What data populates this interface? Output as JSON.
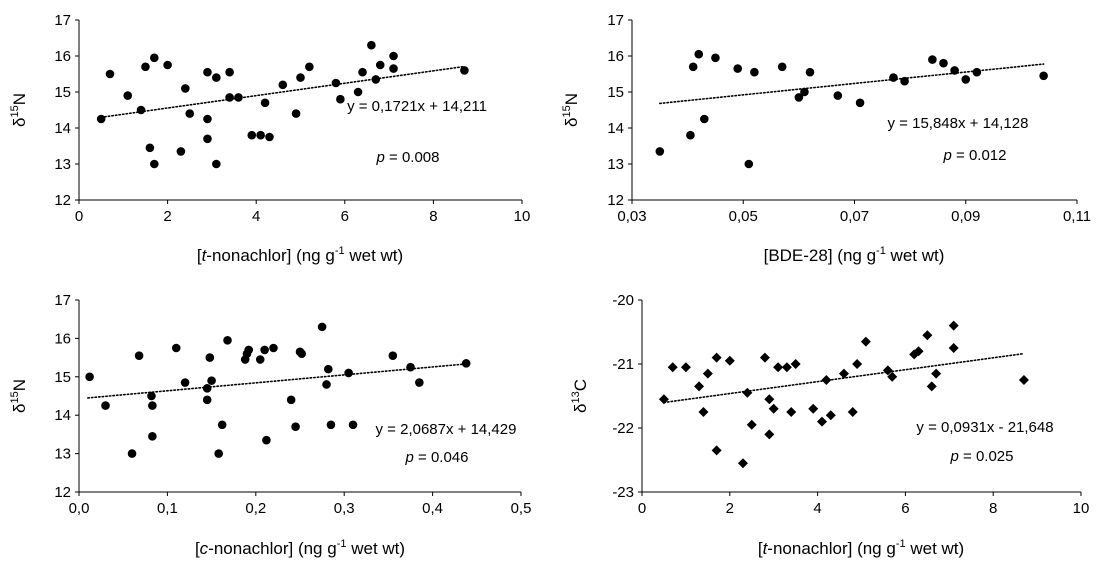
{
  "chart_data": [
    {
      "type": "scatter",
      "marker": "circle",
      "xlabel": {
        "pre": "[",
        "it": "t",
        "mid": "-nonachlor] (ng g",
        "sup": "-1",
        "post": " wet wt)"
      },
      "ylabel": {
        "main": "δ",
        "sup": "15",
        "post": "N"
      },
      "xlim": [
        0,
        10
      ],
      "ylim": [
        12,
        17
      ],
      "xticks": [
        "0",
        "2",
        "4",
        "6",
        "8",
        "10"
      ],
      "yticks": [
        "12",
        "13",
        "14",
        "15",
        "16",
        "17"
      ],
      "equation": "y = 0,1721x + 14,211",
      "p_label": "p",
      "p_value": " = 0.008",
      "trendline": {
        "slope": 0.1721,
        "intercept": 14.211,
        "x_range": [
          0.5,
          8.7
        ]
      },
      "points": [
        [
          0.5,
          14.25
        ],
        [
          0.7,
          15.5
        ],
        [
          1.1,
          14.9
        ],
        [
          1.4,
          14.5
        ],
        [
          1.5,
          15.7
        ],
        [
          1.6,
          13.45
        ],
        [
          1.7,
          13.0
        ],
        [
          1.7,
          15.95
        ],
        [
          2.0,
          15.75
        ],
        [
          2.3,
          13.35
        ],
        [
          2.4,
          15.1
        ],
        [
          2.5,
          14.4
        ],
        [
          2.9,
          15.55
        ],
        [
          2.9,
          14.25
        ],
        [
          2.9,
          13.7
        ],
        [
          3.1,
          13.0
        ],
        [
          3.1,
          15.4
        ],
        [
          3.4,
          15.55
        ],
        [
          3.4,
          14.85
        ],
        [
          3.6,
          14.85
        ],
        [
          3.9,
          13.8
        ],
        [
          4.1,
          13.8
        ],
        [
          4.2,
          14.7
        ],
        [
          4.3,
          13.75
        ],
        [
          4.6,
          15.2
        ],
        [
          4.9,
          14.4
        ],
        [
          5.0,
          15.4
        ],
        [
          5.2,
          15.7
        ],
        [
          5.8,
          15.25
        ],
        [
          5.9,
          14.8
        ],
        [
          6.3,
          15.0
        ],
        [
          6.4,
          15.55
        ],
        [
          6.6,
          16.3
        ],
        [
          6.7,
          15.35
        ],
        [
          6.8,
          15.75
        ],
        [
          7.1,
          16.0
        ],
        [
          7.1,
          15.65
        ],
        [
          8.7,
          15.6
        ]
      ]
    },
    {
      "type": "scatter",
      "marker": "circle",
      "xlabel": {
        "pre": "[BDE-28] (ng g",
        "sup": "-1",
        "post": " wet wt)"
      },
      "ylabel": {
        "main": "δ",
        "sup": "15",
        "post": "N"
      },
      "xlim": [
        0.03,
        0.11
      ],
      "ylim": [
        12,
        17
      ],
      "xticks": [
        "0,03",
        "0,05",
        "0,07",
        "0,09",
        "0,11"
      ],
      "yticks": [
        "12",
        "13",
        "14",
        "15",
        "16",
        "17"
      ],
      "equation": "y = 15,848x + 14,128",
      "p_label": "p",
      "p_value": " = 0.012",
      "trendline": {
        "slope": 15.848,
        "intercept": 14.128,
        "x_range": [
          0.035,
          0.104
        ]
      },
      "points": [
        [
          0.035,
          13.35
        ],
        [
          0.0405,
          13.8
        ],
        [
          0.041,
          15.7
        ],
        [
          0.042,
          16.05
        ],
        [
          0.043,
          14.25
        ],
        [
          0.045,
          15.95
        ],
        [
          0.049,
          15.65
        ],
        [
          0.051,
          13.0
        ],
        [
          0.052,
          15.55
        ],
        [
          0.057,
          15.7
        ],
        [
          0.06,
          14.85
        ],
        [
          0.061,
          15.0
        ],
        [
          0.062,
          15.55
        ],
        [
          0.067,
          14.9
        ],
        [
          0.071,
          14.7
        ],
        [
          0.077,
          15.4
        ],
        [
          0.079,
          15.3
        ],
        [
          0.084,
          15.9
        ],
        [
          0.086,
          15.8
        ],
        [
          0.088,
          15.6
        ],
        [
          0.09,
          15.35
        ],
        [
          0.092,
          15.55
        ],
        [
          0.104,
          15.45
        ]
      ]
    },
    {
      "type": "scatter",
      "marker": "circle",
      "xlabel": {
        "pre": "[",
        "it": "c",
        "mid": "-nonachlor] (ng g",
        "sup": "-1",
        "post": " wet wt)"
      },
      "ylabel": {
        "main": "δ",
        "sup": "15",
        "post": "N"
      },
      "xlim": [
        0.0,
        0.5
      ],
      "ylim": [
        12,
        17
      ],
      "xticks": [
        "0,0",
        "0,1",
        "0,2",
        "0,3",
        "0,4",
        "0,5"
      ],
      "yticks": [
        "12",
        "13",
        "14",
        "15",
        "16",
        "17"
      ],
      "equation": "y = 2,0687x + 14,429",
      "p_label": "p",
      "p_value": " = 0.046",
      "trendline": {
        "slope": 2.0687,
        "intercept": 14.429,
        "x_range": [
          0.01,
          0.44
        ]
      },
      "points": [
        [
          0.012,
          15.0
        ],
        [
          0.03,
          14.25
        ],
        [
          0.06,
          13.0
        ],
        [
          0.068,
          15.55
        ],
        [
          0.082,
          14.5
        ],
        [
          0.083,
          14.25
        ],
        [
          0.083,
          13.45
        ],
        [
          0.11,
          15.75
        ],
        [
          0.12,
          14.85
        ],
        [
          0.145,
          14.7
        ],
        [
          0.145,
          14.4
        ],
        [
          0.148,
          15.5
        ],
        [
          0.15,
          14.9
        ],
        [
          0.158,
          13.0
        ],
        [
          0.162,
          13.75
        ],
        [
          0.168,
          15.95
        ],
        [
          0.188,
          15.45
        ],
        [
          0.19,
          15.6
        ],
        [
          0.192,
          15.7
        ],
        [
          0.205,
          15.45
        ],
        [
          0.21,
          15.7
        ],
        [
          0.212,
          13.35
        ],
        [
          0.22,
          15.75
        ],
        [
          0.24,
          14.4
        ],
        [
          0.245,
          13.7
        ],
        [
          0.25,
          15.65
        ],
        [
          0.252,
          15.6
        ],
        [
          0.275,
          16.3
        ],
        [
          0.28,
          14.8
        ],
        [
          0.282,
          15.2
        ],
        [
          0.285,
          13.75
        ],
        [
          0.305,
          15.1
        ],
        [
          0.31,
          13.75
        ],
        [
          0.355,
          15.55
        ],
        [
          0.375,
          15.25
        ],
        [
          0.385,
          14.85
        ],
        [
          0.438,
          15.35
        ]
      ]
    },
    {
      "type": "scatter",
      "marker": "diamond",
      "xlabel": {
        "pre": "[",
        "it": "t",
        "mid": "-nonachlor] (ng g",
        "sup": "-1",
        "post": " wet wt)"
      },
      "ylabel": {
        "main": "δ",
        "sup": "13",
        "post": "C"
      },
      "xlim": [
        0,
        10
      ],
      "ylim": [
        -23,
        -20
      ],
      "xticks": [
        "0",
        "2",
        "4",
        "6",
        "8",
        "10"
      ],
      "yticks": [
        "-23",
        "-22",
        "-21",
        "-20"
      ],
      "equation": "y = 0,0931x - 21,648",
      "p_label": "p",
      "p_value": " = 0.025",
      "trendline": {
        "slope": 0.0931,
        "intercept": -21.648,
        "x_range": [
          0.5,
          8.7
        ]
      },
      "points": [
        [
          0.5,
          -21.55
        ],
        [
          0.7,
          -21.05
        ],
        [
          1.0,
          -21.05
        ],
        [
          1.3,
          -21.35
        ],
        [
          1.4,
          -21.75
        ],
        [
          1.5,
          -21.15
        ],
        [
          1.7,
          -22.35
        ],
        [
          1.7,
          -20.9
        ],
        [
          2.0,
          -20.95
        ],
        [
          2.3,
          -22.55
        ],
        [
          2.4,
          -21.45
        ],
        [
          2.5,
          -21.95
        ],
        [
          2.8,
          -20.9
        ],
        [
          2.9,
          -21.55
        ],
        [
          2.9,
          -22.1
        ],
        [
          3.0,
          -21.7
        ],
        [
          3.1,
          -21.05
        ],
        [
          3.3,
          -21.05
        ],
        [
          3.4,
          -21.75
        ],
        [
          3.5,
          -21.0
        ],
        [
          3.9,
          -21.7
        ],
        [
          4.1,
          -21.9
        ],
        [
          4.2,
          -21.25
        ],
        [
          4.3,
          -21.8
        ],
        [
          4.6,
          -21.15
        ],
        [
          4.8,
          -21.75
        ],
        [
          4.9,
          -21.0
        ],
        [
          5.1,
          -20.65
        ],
        [
          5.6,
          -21.1
        ],
        [
          5.7,
          -21.2
        ],
        [
          6.2,
          -20.85
        ],
        [
          6.3,
          -20.8
        ],
        [
          6.5,
          -20.55
        ],
        [
          6.6,
          -21.35
        ],
        [
          6.7,
          -21.15
        ],
        [
          7.1,
          -20.4
        ],
        [
          7.1,
          -20.75
        ],
        [
          8.7,
          -21.25
        ]
      ]
    }
  ]
}
